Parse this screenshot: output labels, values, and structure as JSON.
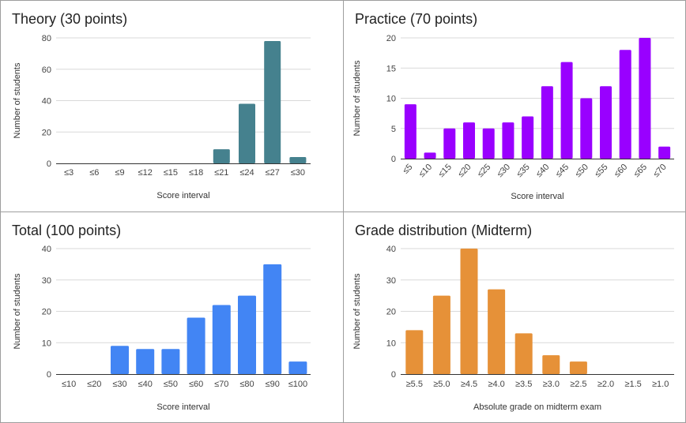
{
  "chart_data": [
    {
      "type": "bar",
      "title": "Theory (30 points)",
      "xlabel": "Score interval",
      "ylabel": "Number of students",
      "categories": [
        "≤3",
        "≤6",
        "≤9",
        "≤12",
        "≤15",
        "≤18",
        "≤21",
        "≤24",
        "≤27",
        "≤30"
      ],
      "values": [
        0,
        0,
        0,
        0,
        0,
        0,
        9,
        38,
        78,
        4
      ],
      "ylim": [
        0,
        80
      ],
      "yticks": [
        0,
        20,
        40,
        60,
        80
      ],
      "color": "#45818e",
      "grid": true,
      "legend": "none",
      "rotate_ticks": false
    },
    {
      "type": "bar",
      "title": "Practice (70 points)",
      "xlabel": "Score interval",
      "ylabel": "Number of students",
      "categories": [
        "≤5",
        "≤10",
        "≤15",
        "≤20",
        "≤25",
        "≤30",
        "≤35",
        "≤40",
        "≤45",
        "≤50",
        "≤55",
        "≤60",
        "≤65",
        "≤70"
      ],
      "values": [
        9,
        1,
        5,
        6,
        5,
        6,
        7,
        12,
        16,
        10,
        12,
        18,
        20,
        2
      ],
      "ylim": [
        0,
        20
      ],
      "yticks": [
        0,
        5,
        10,
        15,
        20
      ],
      "color": "#9900ff",
      "grid": true,
      "legend": "none",
      "rotate_ticks": true
    },
    {
      "type": "bar",
      "title": "Total (100 points)",
      "xlabel": "Score interval",
      "ylabel": "Number of students",
      "categories": [
        "≤10",
        "≤20",
        "≤30",
        "≤40",
        "≤50",
        "≤60",
        "≤70",
        "≤80",
        "≤90",
        "≤100"
      ],
      "values": [
        0,
        0,
        9,
        8,
        8,
        18,
        22,
        25,
        35,
        4
      ],
      "ylim": [
        0,
        40
      ],
      "yticks": [
        0,
        10,
        20,
        30,
        40
      ],
      "color": "#4285f4",
      "grid": true,
      "legend": "none",
      "rotate_ticks": false
    },
    {
      "type": "bar",
      "title": "Grade distribution (Midterm)",
      "xlabel": "Absolute grade on midterm exam",
      "ylabel": "Number of students",
      "categories": [
        "≥5.5",
        "≥5.0",
        "≥4.5",
        "≥4.0",
        "≥3.5",
        "≥3.0",
        "≥2.5",
        "≥2.0",
        "≥1.5",
        "≥1.0"
      ],
      "values": [
        14,
        25,
        40,
        27,
        13,
        6,
        4,
        0,
        0,
        0
      ],
      "ylim": [
        0,
        40
      ],
      "yticks": [
        0,
        10,
        20,
        30,
        40
      ],
      "color": "#e69138",
      "grid": true,
      "legend": "none",
      "rotate_ticks": false
    }
  ]
}
